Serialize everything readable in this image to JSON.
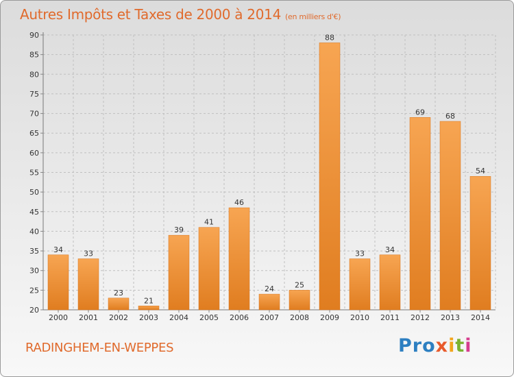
{
  "header": {
    "title": "Autres Impôts et Taxes de 2000 à 2014",
    "unit": "(en milliers d'€)"
  },
  "footer": {
    "commune": "RADINGHEM-EN-WEPPES",
    "logo_parts": [
      "Pro",
      "x",
      "i",
      "t",
      "i"
    ]
  },
  "colors": {
    "title": "#e06a2c",
    "bar_light": "#f7a552",
    "bar_dark": "#e07d20",
    "grid": "#bfbfbf"
  },
  "chart_data": {
    "type": "bar",
    "title": "Autres Impôts et Taxes de 2000 à 2014",
    "xlabel": "",
    "ylabel": "",
    "categories": [
      "2000",
      "2001",
      "2002",
      "2003",
      "2004",
      "2005",
      "2006",
      "2007",
      "2008",
      "2009",
      "2010",
      "2011",
      "2012",
      "2013",
      "2014"
    ],
    "values": [
      34,
      33,
      23,
      21,
      39,
      41,
      46,
      24,
      25,
      88,
      33,
      34,
      69,
      68,
      54
    ],
    "ylim": [
      20,
      90
    ],
    "yticks": [
      20,
      25,
      30,
      35,
      40,
      45,
      50,
      55,
      60,
      65,
      70,
      75,
      80,
      85,
      90
    ],
    "grid": "horizontal dashed",
    "data_labels": true
  }
}
